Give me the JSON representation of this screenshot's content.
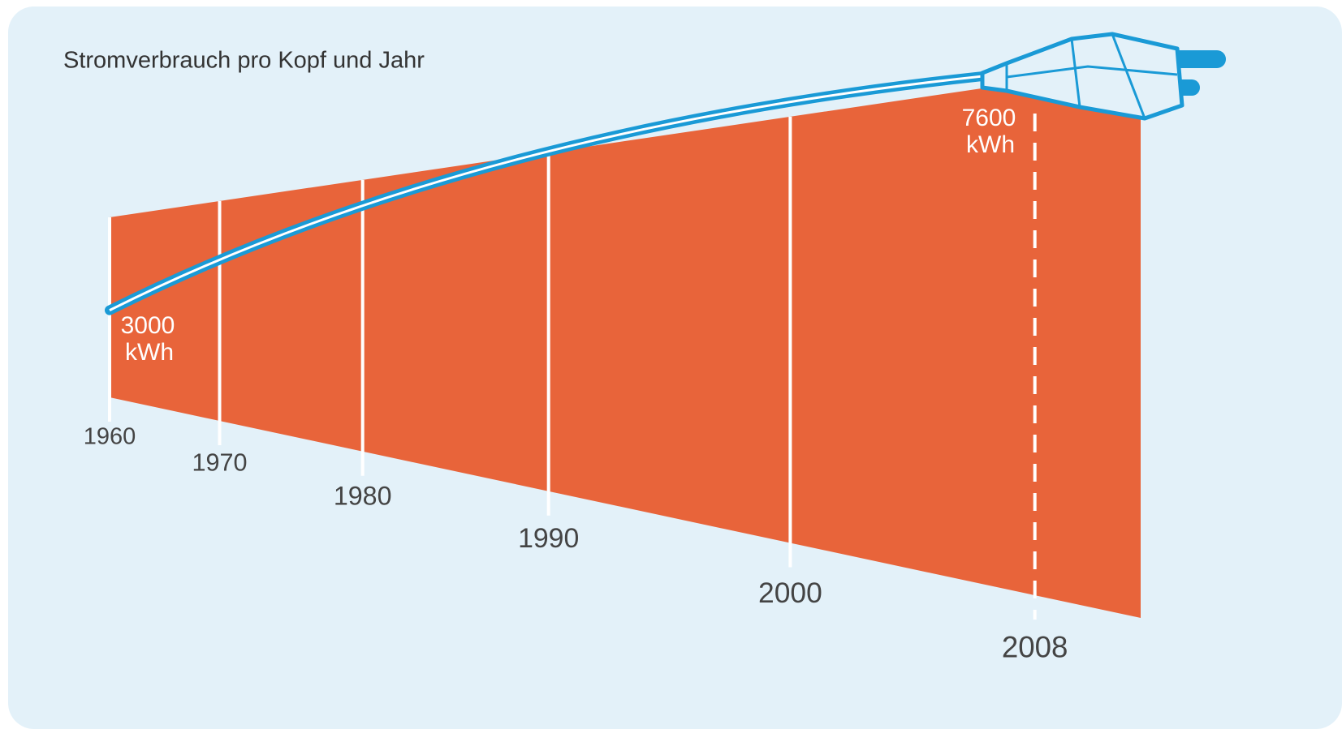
{
  "chart_data": {
    "type": "line",
    "title": "Stromverbrauch pro Kopf und Jahr",
    "x": [
      1960,
      2008
    ],
    "values": [
      3000,
      7600
    ],
    "unit": "kWh",
    "xlim": [
      1960,
      2011
    ],
    "xticks": [
      1960,
      1970,
      1980,
      1990,
      2000,
      2008
    ],
    "ylim": [
      0,
      8000
    ],
    "color": "#1a9ad6",
    "band_color": "#e8643a"
  }
}
